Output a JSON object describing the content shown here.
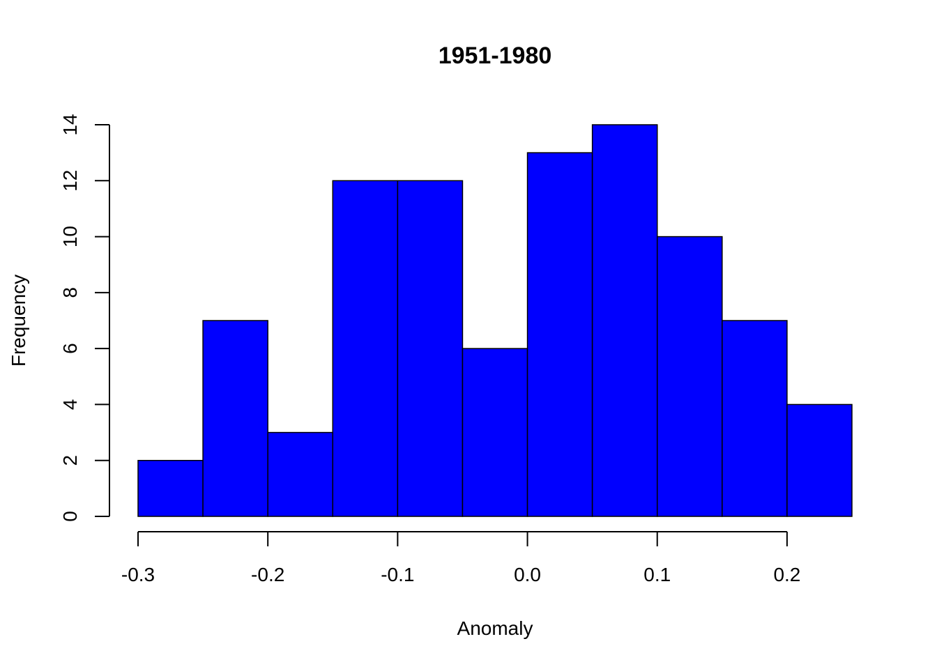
{
  "chart_data": {
    "type": "bar",
    "title": "1951-1980",
    "xlabel": "Anomaly",
    "ylabel": "Frequency",
    "bins": [
      {
        "from": -0.3,
        "to": -0.25,
        "count": 2
      },
      {
        "from": -0.25,
        "to": -0.2,
        "count": 7
      },
      {
        "from": -0.2,
        "to": -0.15,
        "count": 3
      },
      {
        "from": -0.15,
        "to": -0.1,
        "count": 12
      },
      {
        "from": -0.1,
        "to": -0.05,
        "count": 12
      },
      {
        "from": -0.05,
        "to": 0.0,
        "count": 6
      },
      {
        "from": 0.0,
        "to": 0.05,
        "count": 13
      },
      {
        "from": 0.05,
        "to": 0.1,
        "count": 14
      },
      {
        "from": 0.1,
        "to": 0.15,
        "count": 10
      },
      {
        "from": 0.15,
        "to": 0.2,
        "count": 7
      },
      {
        "from": 0.2,
        "to": 0.25,
        "count": 4
      }
    ],
    "xlim": [
      -0.3,
      0.25
    ],
    "ylim": [
      0,
      14
    ],
    "x_ticks": [
      {
        "value": -0.3,
        "label": "-0.3"
      },
      {
        "value": -0.2,
        "label": "-0.2"
      },
      {
        "value": -0.1,
        "label": "-0.1"
      },
      {
        "value": 0.0,
        "label": "0.0"
      },
      {
        "value": 0.1,
        "label": "0.1"
      },
      {
        "value": 0.2,
        "label": "0.2"
      }
    ],
    "y_ticks": [
      {
        "value": 0,
        "label": "0"
      },
      {
        "value": 2,
        "label": "2"
      },
      {
        "value": 4,
        "label": "4"
      },
      {
        "value": 6,
        "label": "6"
      },
      {
        "value": 8,
        "label": "8"
      },
      {
        "value": 10,
        "label": "10"
      },
      {
        "value": 12,
        "label": "12"
      },
      {
        "value": 14,
        "label": "14"
      }
    ],
    "bar_color": "#0000ff",
    "grid": false,
    "legend": "none"
  }
}
